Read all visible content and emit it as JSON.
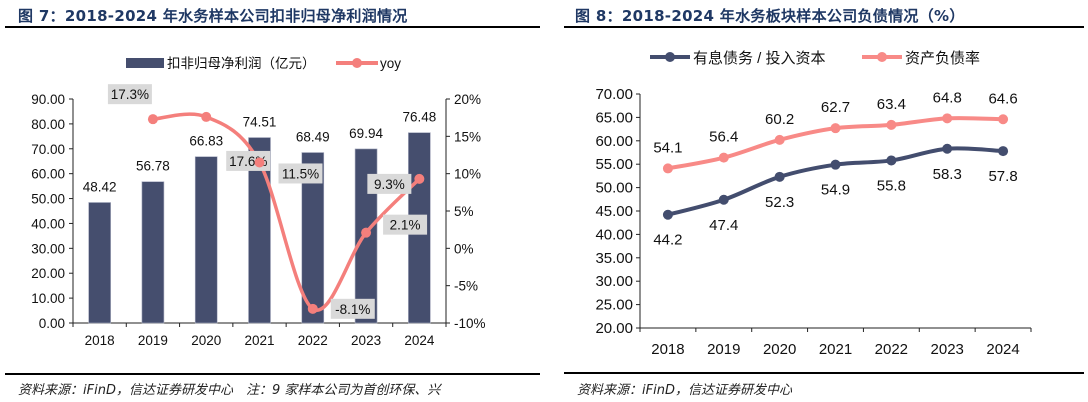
{
  "left": {
    "title": "图 7：2018-2024 年水务样本公司扣非归母净利润情况",
    "source": "资料来源：iFinD，信达证券研发中心　注：9 家样本公司为首创环保、兴"
  },
  "right": {
    "title": "图 8：2018-2024 年水务板块样本公司负债情况（%）",
    "source": "资料来源：iFinD，信达证券研发中心"
  },
  "chart_data": [
    {
      "type": "bar+line",
      "categories": [
        "2018",
        "2019",
        "2020",
        "2021",
        "2022",
        "2023",
        "2024"
      ],
      "series": [
        {
          "name": "扣非归母净利润（亿元）",
          "type": "bar",
          "axis": "left",
          "color": "#454e6e",
          "values": [
            48.42,
            56.78,
            66.83,
            74.51,
            68.49,
            69.94,
            76.48
          ],
          "labels": [
            "48.42",
            "56.78",
            "66.83",
            "74.51",
            "68.49",
            "69.94",
            "76.48"
          ]
        },
        {
          "name": "yoy",
          "type": "line",
          "axis": "right",
          "color": "#f47f7c",
          "values": [
            null,
            17.3,
            17.6,
            11.5,
            -8.1,
            2.1,
            9.3
          ],
          "labels": [
            "",
            "17.3%",
            "17.6%",
            "11.5%",
            "-8.1%",
            "2.1%",
            "9.3%"
          ]
        }
      ],
      "y_left": {
        "range": [
          0,
          90
        ],
        "ticks": [
          "0.00",
          "10.00",
          "20.00",
          "30.00",
          "40.00",
          "50.00",
          "60.00",
          "70.00",
          "80.00",
          "90.00"
        ]
      },
      "y_right": {
        "range": [
          -10,
          20
        ],
        "ticks": [
          "-10%",
          "-5%",
          "0%",
          "5%",
          "10%",
          "15%",
          "20%"
        ]
      },
      "legend": "top",
      "grid": false
    },
    {
      "type": "line",
      "categories": [
        "2018",
        "2019",
        "2020",
        "2021",
        "2022",
        "2023",
        "2024"
      ],
      "series": [
        {
          "name": "有息债务 / 投入资本",
          "color": "#434d6e",
          "values": [
            44.2,
            47.4,
            52.3,
            54.9,
            55.8,
            58.3,
            57.8
          ],
          "labels": [
            "44.2",
            "47.4",
            "52.3",
            "54.9",
            "55.8",
            "58.3",
            "57.8"
          ]
        },
        {
          "name": "资产负债率",
          "color": "#f88a87",
          "values": [
            54.1,
            56.4,
            60.2,
            62.7,
            63.4,
            64.8,
            64.6
          ],
          "labels": [
            "54.1",
            "56.4",
            "60.2",
            "62.7",
            "63.4",
            "64.8",
            "64.6"
          ]
        }
      ],
      "y": {
        "range": [
          20,
          70
        ],
        "ticks": [
          "20.00",
          "25.00",
          "30.00",
          "35.00",
          "40.00",
          "45.00",
          "50.00",
          "55.00",
          "60.00",
          "65.00",
          "70.00"
        ]
      },
      "legend": "top",
      "grid": false
    }
  ]
}
